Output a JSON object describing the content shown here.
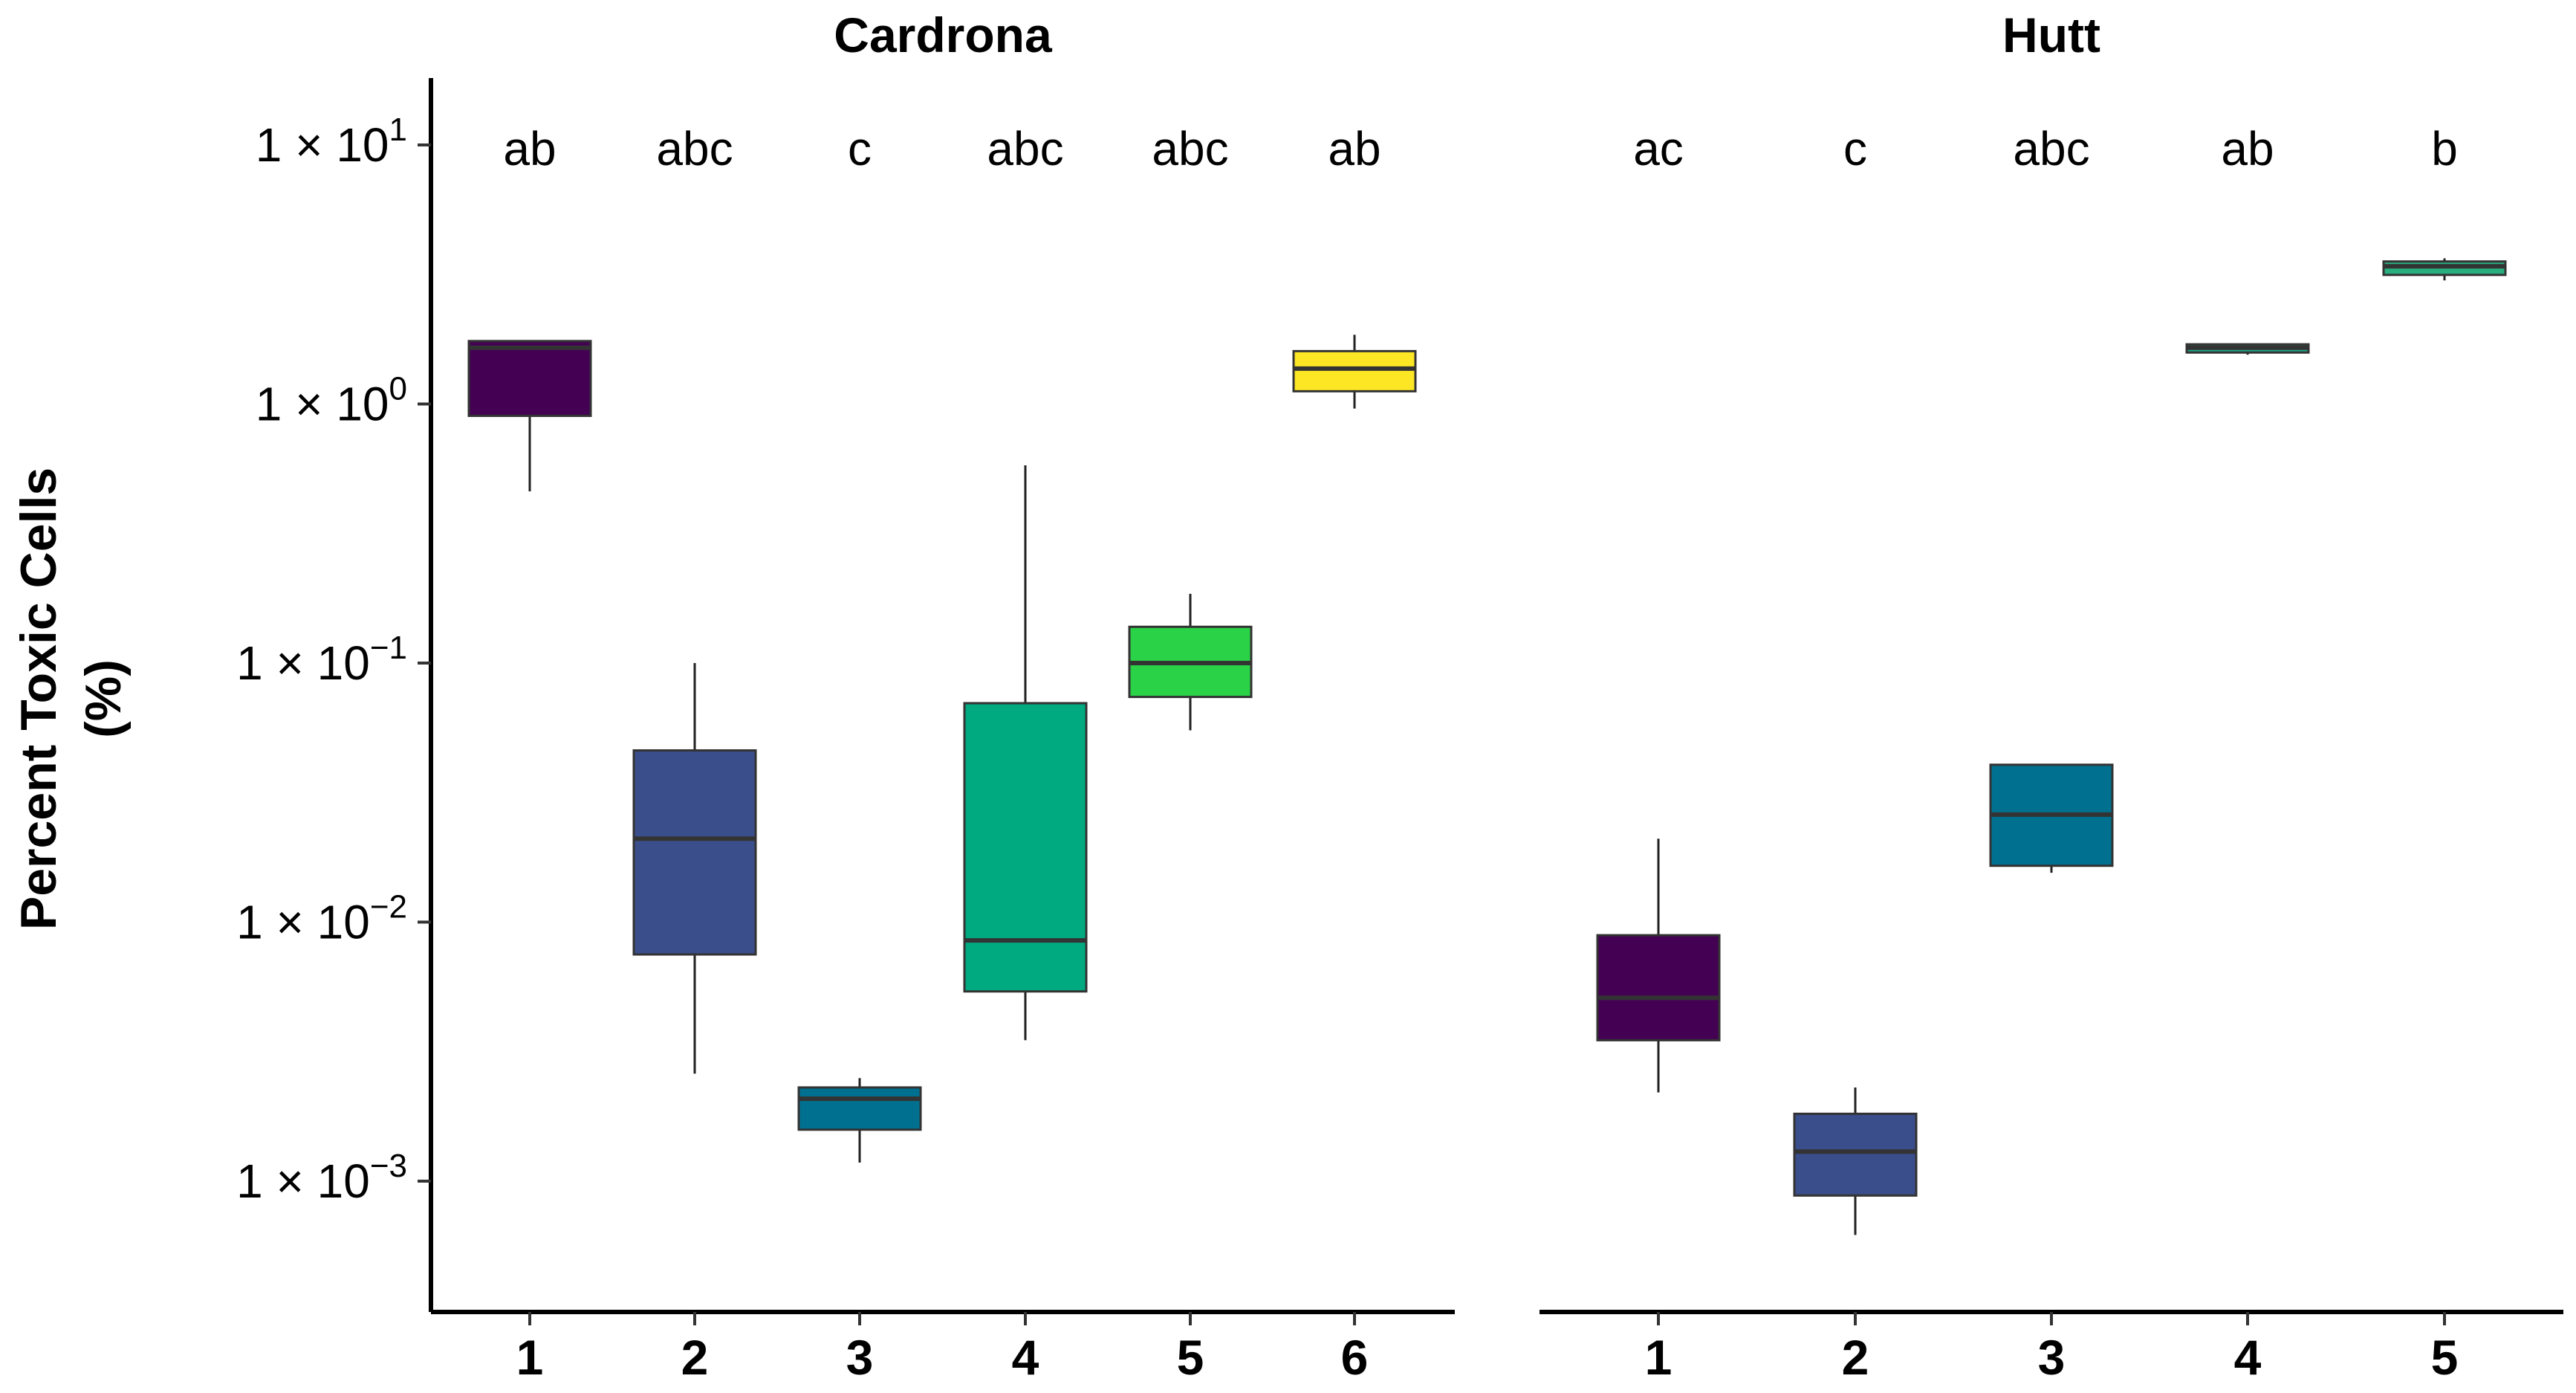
{
  "chart_data": {
    "type": "boxplot",
    "yscale": "log10",
    "ylabel_line1": "Percent Toxic Cells",
    "ylabel_line2": "(%)",
    "ylim": [
      0.0002,
      25
    ],
    "y_ticks": [
      {
        "value": 10,
        "base": "1 × 10",
        "exp": "1"
      },
      {
        "value": 1,
        "base": "1 × 10",
        "exp": "0"
      },
      {
        "value": 0.1,
        "base": "1 × 10",
        "exp": "−1"
      },
      {
        "value": 0.01,
        "base": "1 × 10",
        "exp": "−2"
      },
      {
        "value": 0.001,
        "base": "1 × 10",
        "exp": "−3"
      }
    ],
    "panels": [
      {
        "title": "Cardrona",
        "boxes": [
          {
            "label": "1",
            "letter": "ab",
            "color": "#440154",
            "whisker_low": 0.46,
            "q1": 0.9,
            "median": 1.65,
            "q3": 1.75,
            "whisker_high": 1.75
          },
          {
            "label": "2",
            "letter": "abc",
            "color": "#3B4E8C",
            "whisker_low": 0.0026,
            "q1": 0.0075,
            "median": 0.021,
            "q3": 0.046,
            "whisker_high": 0.1
          },
          {
            "label": "3",
            "letter": "c",
            "color": "#007090",
            "whisker_low": 0.00118,
            "q1": 0.00158,
            "median": 0.00208,
            "q3": 0.0023,
            "whisker_high": 0.0025
          },
          {
            "label": "4",
            "letter": "abc",
            "color": "#00AA80",
            "whisker_low": 0.0035,
            "q1": 0.0054,
            "median": 0.0085,
            "q3": 0.07,
            "whisker_high": 0.58
          },
          {
            "label": "5",
            "letter": "abc",
            "color": "#2AD248",
            "whisker_low": 0.055,
            "q1": 0.074,
            "median": 0.1,
            "q3": 0.138,
            "whisker_high": 0.185
          },
          {
            "label": "6",
            "letter": "ab",
            "color": "#FDE725",
            "whisker_low": 0.96,
            "q1": 1.12,
            "median": 1.37,
            "q3": 1.6,
            "whisker_high": 1.85
          }
        ]
      },
      {
        "title": "Hutt",
        "boxes": [
          {
            "label": "1",
            "letter": "ac",
            "color": "#440154",
            "whisker_low": 0.0022,
            "q1": 0.0035,
            "median": 0.0051,
            "q3": 0.0089,
            "whisker_high": 0.021
          },
          {
            "label": "2",
            "letter": "c",
            "color": "#3B4E8C",
            "whisker_low": 0.00062,
            "q1": 0.00088,
            "median": 0.0013,
            "q3": 0.00182,
            "whisker_high": 0.0023
          },
          {
            "label": "3",
            "letter": "abc",
            "color": "#007090",
            "whisker_low": 0.0155,
            "q1": 0.0165,
            "median": 0.026,
            "q3": 0.0405,
            "whisker_high": 0.0405
          },
          {
            "label": "4",
            "letter": "ab",
            "color": "#20A386",
            "whisker_low": 1.55,
            "q1": 1.58,
            "median": 1.65,
            "q3": 1.7,
            "whisker_high": 1.7
          },
          {
            "label": "5",
            "letter": "b",
            "color": "#29AF7F",
            "whisker_low": 3.0,
            "q1": 3.15,
            "median": 3.4,
            "q3": 3.55,
            "whisker_high": 3.65
          }
        ]
      }
    ]
  }
}
